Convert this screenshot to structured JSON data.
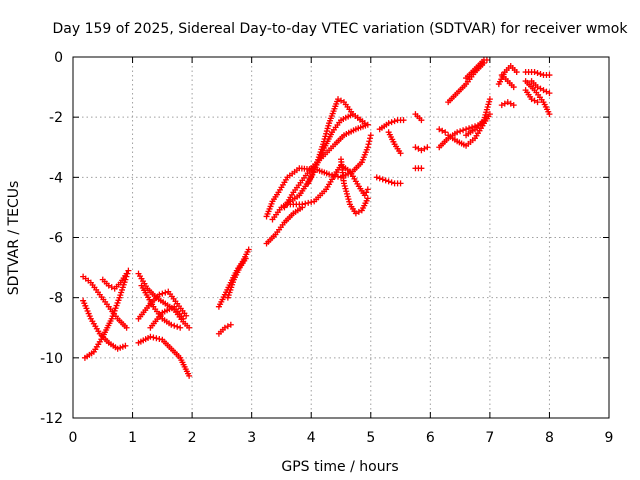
{
  "chart_data": {
    "type": "scatter",
    "title": "Day 159 of 2025, Sidereal Day-to-day VTEC variation (SDTVAR) for receiver wmok",
    "xlabel": "GPS time / hours",
    "ylabel": "SDTVAR / TECUs",
    "xlim": [
      0,
      9
    ],
    "ylim": [
      -12,
      0
    ],
    "x_ticks": [
      "0",
      "1",
      "2",
      "3",
      "4",
      "5",
      "6",
      "7",
      "8",
      "9"
    ],
    "y_ticks": [
      "0",
      "-2",
      "-4",
      "-6",
      "-8",
      "-10",
      "-12"
    ],
    "grid": true,
    "marker": "+",
    "color": "#ff0000",
    "series": [
      {
        "values": [
          [
            0.17,
            -8.1
          ],
          [
            0.3,
            -8.7
          ],
          [
            0.45,
            -9.2
          ],
          [
            0.6,
            -9.5
          ],
          [
            0.75,
            -9.7
          ],
          [
            0.88,
            -9.6
          ]
        ]
      },
      {
        "values": [
          [
            0.17,
            -7.3
          ],
          [
            0.3,
            -7.5
          ],
          [
            0.45,
            -7.9
          ],
          [
            0.6,
            -8.3
          ],
          [
            0.75,
            -8.7
          ],
          [
            0.9,
            -9.0
          ]
        ]
      },
      {
        "values": [
          [
            0.2,
            -10.0
          ],
          [
            0.35,
            -9.8
          ],
          [
            0.5,
            -9.3
          ],
          [
            0.65,
            -8.7
          ],
          [
            0.78,
            -8.0
          ],
          [
            0.88,
            -7.4
          ],
          [
            0.93,
            -7.1
          ]
        ]
      },
      {
        "values": [
          [
            0.5,
            -7.4
          ],
          [
            0.6,
            -7.6
          ],
          [
            0.7,
            -7.7
          ],
          [
            0.8,
            -7.5
          ],
          [
            0.9,
            -7.2
          ]
        ]
      },
      {
        "values": [
          [
            1.1,
            -7.2
          ],
          [
            1.25,
            -7.7
          ],
          [
            1.4,
            -8.0
          ],
          [
            1.55,
            -8.2
          ],
          [
            1.7,
            -8.4
          ],
          [
            1.85,
            -8.8
          ],
          [
            1.95,
            -9.0
          ]
        ]
      },
      {
        "values": [
          [
            1.1,
            -8.7
          ],
          [
            1.3,
            -8.2
          ],
          [
            1.45,
            -7.9
          ],
          [
            1.6,
            -7.8
          ],
          [
            1.75,
            -8.2
          ],
          [
            1.9,
            -8.6
          ]
        ]
      },
      {
        "values": [
          [
            1.1,
            -9.5
          ],
          [
            1.3,
            -9.3
          ],
          [
            1.5,
            -9.4
          ],
          [
            1.65,
            -9.7
          ],
          [
            1.8,
            -10.0
          ],
          [
            1.95,
            -10.6
          ]
        ]
      },
      {
        "values": [
          [
            1.15,
            -7.6
          ],
          [
            1.35,
            -8.3
          ],
          [
            1.5,
            -8.7
          ],
          [
            1.65,
            -8.9
          ],
          [
            1.8,
            -9.0
          ]
        ]
      },
      {
        "values": [
          [
            1.3,
            -9.0
          ],
          [
            1.5,
            -8.5
          ],
          [
            1.7,
            -8.3
          ],
          [
            1.85,
            -8.7
          ]
        ]
      },
      {
        "values": [
          [
            2.45,
            -9.2
          ],
          [
            2.55,
            -9.0
          ],
          [
            2.65,
            -8.9
          ]
        ]
      },
      {
        "values": [
          [
            2.45,
            -8.3
          ],
          [
            2.55,
            -7.9
          ],
          [
            2.65,
            -7.5
          ],
          [
            2.75,
            -7.1
          ],
          [
            2.85,
            -6.8
          ],
          [
            2.95,
            -6.4
          ]
        ]
      },
      {
        "values": [
          [
            2.6,
            -8.0
          ],
          [
            2.7,
            -7.4
          ],
          [
            2.8,
            -7.0
          ],
          [
            2.9,
            -6.7
          ]
        ]
      },
      {
        "values": [
          [
            3.25,
            -6.2
          ],
          [
            3.4,
            -5.9
          ],
          [
            3.55,
            -5.5
          ],
          [
            3.7,
            -5.2
          ],
          [
            3.85,
            -5.0
          ]
        ]
      },
      {
        "values": [
          [
            3.25,
            -5.3
          ],
          [
            3.35,
            -4.8
          ],
          [
            3.45,
            -4.5
          ],
          [
            3.6,
            -4.0
          ],
          [
            3.8,
            -3.7
          ],
          [
            4.1,
            -3.75
          ],
          [
            4.3,
            -3.9
          ],
          [
            4.5,
            -4.0
          ],
          [
            4.7,
            -3.8
          ],
          [
            4.85,
            -3.5
          ],
          [
            4.95,
            -3.0
          ],
          [
            5.0,
            -2.6
          ]
        ]
      },
      {
        "values": [
          [
            3.35,
            -5.4
          ],
          [
            3.5,
            -5.0
          ],
          [
            3.65,
            -4.8
          ],
          [
            3.8,
            -4.6
          ],
          [
            4.0,
            -4.0
          ],
          [
            4.2,
            -3.1
          ],
          [
            4.35,
            -2.5
          ],
          [
            4.5,
            -2.1
          ],
          [
            4.7,
            -1.9
          ],
          [
            4.9,
            -2.2
          ]
        ]
      },
      {
        "values": [
          [
            3.55,
            -5.0
          ],
          [
            3.7,
            -4.5
          ],
          [
            3.85,
            -4.1
          ],
          [
            4.0,
            -3.7
          ],
          [
            4.2,
            -3.3
          ],
          [
            4.4,
            -2.9
          ],
          [
            4.55,
            -2.6
          ],
          [
            4.75,
            -2.4
          ],
          [
            4.95,
            -2.25
          ]
        ]
      },
      {
        "values": [
          [
            3.95,
            -4.2
          ],
          [
            4.1,
            -3.5
          ],
          [
            4.2,
            -2.9
          ],
          [
            4.3,
            -2.2
          ],
          [
            4.45,
            -1.4
          ],
          [
            4.55,
            -1.5
          ],
          [
            4.7,
            -1.9
          ],
          [
            4.9,
            -2.2
          ]
        ]
      },
      {
        "values": [
          [
            3.6,
            -4.9
          ],
          [
            3.85,
            -4.9
          ],
          [
            4.05,
            -4.8
          ],
          [
            4.25,
            -4.4
          ],
          [
            4.4,
            -3.9
          ],
          [
            4.5,
            -3.6
          ],
          [
            4.65,
            -3.8
          ],
          [
            4.8,
            -4.3
          ],
          [
            4.9,
            -4.6
          ],
          [
            4.95,
            -4.4
          ]
        ]
      },
      {
        "values": [
          [
            4.5,
            -3.4
          ],
          [
            4.55,
            -4.2
          ],
          [
            4.65,
            -4.9
          ],
          [
            4.75,
            -5.2
          ],
          [
            4.85,
            -5.1
          ],
          [
            4.95,
            -4.7
          ]
        ]
      },
      {
        "values": [
          [
            5.1,
            -4.0
          ],
          [
            5.25,
            -4.1
          ],
          [
            5.4,
            -4.2
          ],
          [
            5.5,
            -4.2
          ]
        ]
      },
      {
        "values": [
          [
            5.15,
            -2.4
          ],
          [
            5.3,
            -2.2
          ],
          [
            5.45,
            -2.1
          ],
          [
            5.55,
            -2.1
          ]
        ]
      },
      {
        "values": [
          [
            5.3,
            -2.5
          ],
          [
            5.4,
            -2.9
          ],
          [
            5.5,
            -3.2
          ]
        ]
      },
      {
        "values": [
          [
            5.75,
            -1.9
          ],
          [
            5.85,
            -2.1
          ]
        ]
      },
      {
        "values": [
          [
            5.75,
            -3.0
          ],
          [
            5.85,
            -3.1
          ],
          [
            5.95,
            -3.0
          ]
        ]
      },
      {
        "values": [
          [
            5.75,
            -3.7
          ],
          [
            5.85,
            -3.7
          ]
        ]
      },
      {
        "values": [
          [
            6.15,
            -2.4
          ],
          [
            6.25,
            -2.5
          ]
        ]
      },
      {
        "values": [
          [
            6.15,
            -3.0
          ],
          [
            6.3,
            -2.7
          ],
          [
            6.45,
            -2.5
          ],
          [
            6.6,
            -2.4
          ],
          [
            6.75,
            -2.3
          ],
          [
            6.9,
            -2.2
          ]
        ]
      },
      {
        "values": [
          [
            6.3,
            -2.6
          ],
          [
            6.45,
            -2.8
          ],
          [
            6.6,
            -2.95
          ],
          [
            6.75,
            -2.7
          ],
          [
            6.9,
            -2.2
          ],
          [
            7.0,
            -1.9
          ]
        ]
      },
      {
        "values": [
          [
            6.6,
            -2.6
          ],
          [
            6.75,
            -2.4
          ],
          [
            6.9,
            -2.1
          ],
          [
            7.0,
            -1.4
          ]
        ]
      },
      {
        "values": [
          [
            6.3,
            -1.5
          ],
          [
            6.45,
            -1.2
          ],
          [
            6.6,
            -0.9
          ],
          [
            6.75,
            -0.5
          ],
          [
            6.9,
            -0.2
          ],
          [
            6.95,
            -0.1
          ]
        ]
      },
      {
        "values": [
          [
            6.6,
            -0.7
          ],
          [
            6.75,
            -0.4
          ],
          [
            6.9,
            -0.1
          ]
        ]
      },
      {
        "values": [
          [
            7.2,
            -1.6
          ],
          [
            7.3,
            -1.5
          ],
          [
            7.4,
            -1.6
          ]
        ]
      },
      {
        "values": [
          [
            7.15,
            -0.9
          ],
          [
            7.25,
            -0.5
          ],
          [
            7.35,
            -0.3
          ],
          [
            7.45,
            -0.5
          ]
        ]
      },
      {
        "values": [
          [
            7.2,
            -0.6
          ],
          [
            7.3,
            -0.8
          ],
          [
            7.4,
            -1.0
          ]
        ]
      },
      {
        "values": [
          [
            7.6,
            -0.8
          ],
          [
            7.75,
            -1.1
          ],
          [
            7.9,
            -1.5
          ],
          [
            8.0,
            -1.9
          ]
        ]
      },
      {
        "values": [
          [
            7.6,
            -0.5
          ],
          [
            7.75,
            -0.5
          ],
          [
            7.9,
            -0.6
          ],
          [
            8.0,
            -0.6
          ]
        ]
      },
      {
        "values": [
          [
            7.7,
            -0.8
          ],
          [
            7.8,
            -1.0
          ],
          [
            7.9,
            -1.1
          ],
          [
            8.0,
            -1.2
          ]
        ]
      },
      {
        "values": [
          [
            7.6,
            -1.1
          ],
          [
            7.7,
            -1.4
          ],
          [
            7.8,
            -1.5
          ]
        ]
      }
    ]
  }
}
